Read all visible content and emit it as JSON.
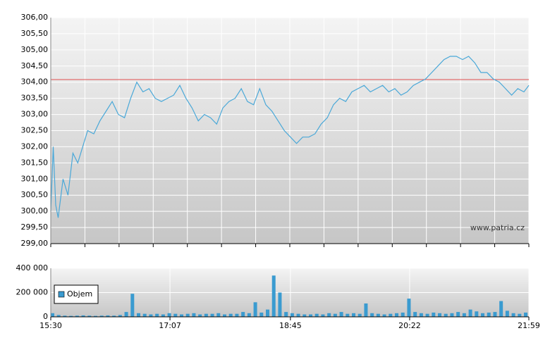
{
  "chart_data": [
    {
      "type": "line",
      "color": "#4aa8d8",
      "x": [
        "15:30",
        "15:32",
        "15:34",
        "15:36",
        "15:40",
        "15:44",
        "15:48",
        "15:52",
        "15:56",
        "16:00",
        "16:05",
        "16:10",
        "16:15",
        "16:20",
        "16:25",
        "16:30",
        "16:35",
        "16:40",
        "16:45",
        "16:50",
        "16:55",
        "17:00",
        "17:05",
        "17:10",
        "17:15",
        "17:20",
        "17:25",
        "17:30",
        "17:35",
        "17:40",
        "17:45",
        "17:50",
        "17:55",
        "18:00",
        "18:05",
        "18:10",
        "18:15",
        "18:20",
        "18:25",
        "18:30",
        "18:35",
        "18:40",
        "18:45",
        "18:50",
        "18:55",
        "19:00",
        "19:05",
        "19:10",
        "19:15",
        "19:20",
        "19:25",
        "19:30",
        "19:35",
        "19:40",
        "19:45",
        "19:50",
        "19:55",
        "20:00",
        "20:05",
        "20:10",
        "20:15",
        "20:20",
        "20:25",
        "20:30",
        "20:35",
        "20:40",
        "20:45",
        "20:50",
        "20:55",
        "21:00",
        "21:05",
        "21:10",
        "21:15",
        "21:20",
        "21:25",
        "21:30",
        "21:35",
        "21:40",
        "21:45",
        "21:50",
        "21:55",
        "21:59"
      ],
      "values": [
        300.0,
        302.0,
        300.2,
        299.8,
        301.0,
        300.5,
        301.8,
        301.5,
        302.0,
        302.5,
        302.4,
        302.8,
        303.1,
        303.4,
        303.0,
        302.9,
        303.5,
        304.0,
        303.7,
        303.8,
        303.5,
        303.4,
        303.5,
        303.6,
        303.9,
        303.5,
        303.2,
        302.8,
        303.0,
        302.9,
        302.7,
        303.2,
        303.4,
        303.5,
        303.8,
        303.4,
        303.3,
        303.8,
        303.3,
        303.1,
        302.8,
        302.5,
        302.3,
        302.1,
        302.3,
        302.3,
        302.4,
        302.7,
        302.9,
        303.3,
        303.5,
        303.4,
        303.7,
        303.8,
        303.9,
        303.7,
        303.8,
        303.9,
        303.7,
        303.8,
        303.6,
        303.7,
        303.9,
        304.0,
        304.1,
        304.3,
        304.5,
        304.7,
        304.8,
        304.8,
        304.7,
        304.8,
        304.6,
        304.3,
        304.3,
        304.1,
        304.0,
        303.8,
        303.6,
        303.8,
        303.7,
        303.9
      ],
      "reference_line": 304.08,
      "reference_color": "#e05050",
      "xlim": [
        "15:30",
        "21:59"
      ],
      "ylim": [
        299,
        306
      ],
      "yticks": [
        {
          "value": 299,
          "label": "299,00"
        },
        {
          "value": 299.5,
          "label": "299,50"
        },
        {
          "value": 300,
          "label": "300,00"
        },
        {
          "value": 300.5,
          "label": "300,50"
        },
        {
          "value": 301,
          "label": "301,00"
        },
        {
          "value": 301.5,
          "label": "301,50"
        },
        {
          "value": 302,
          "label": "302,00"
        },
        {
          "value": 302.5,
          "label": "302,50"
        },
        {
          "value": 303,
          "label": "303,00"
        },
        {
          "value": 303.5,
          "label": "303,50"
        },
        {
          "value": 304,
          "label": "304,00"
        },
        {
          "value": 304.5,
          "label": "304,50"
        },
        {
          "value": 305,
          "label": "305,00"
        },
        {
          "value": 305.5,
          "label": "305,50"
        },
        {
          "value": 306,
          "label": "306,00"
        }
      ],
      "grid": true,
      "annotation": "www.patria.cz"
    },
    {
      "type": "bar",
      "x": [
        "15:30",
        "15:35",
        "15:40",
        "15:45",
        "15:50",
        "15:55",
        "16:00",
        "16:05",
        "16:10",
        "16:15",
        "16:20",
        "16:25",
        "16:30",
        "16:35",
        "16:40",
        "16:45",
        "16:50",
        "16:55",
        "17:00",
        "17:05",
        "17:10",
        "17:15",
        "17:20",
        "17:25",
        "17:30",
        "17:35",
        "17:40",
        "17:45",
        "17:50",
        "17:55",
        "18:00",
        "18:05",
        "18:10",
        "18:15",
        "18:20",
        "18:25",
        "18:30",
        "18:35",
        "18:40",
        "18:45",
        "18:50",
        "18:55",
        "19:00",
        "19:05",
        "19:10",
        "19:15",
        "19:20",
        "19:25",
        "19:30",
        "19:35",
        "19:40",
        "19:45",
        "19:50",
        "19:55",
        "20:00",
        "20:05",
        "20:10",
        "20:15",
        "20:20",
        "20:25",
        "20:30",
        "20:35",
        "20:40",
        "20:45",
        "20:50",
        "20:55",
        "21:00",
        "21:05",
        "21:10",
        "21:15",
        "21:20",
        "21:25",
        "21:30",
        "21:35",
        "21:40",
        "21:45",
        "21:50",
        "21:55"
      ],
      "series": [
        {
          "name": "Objem",
          "color": "#3a9bd0",
          "values": [
            30000,
            15000,
            10000,
            8000,
            10000,
            12000,
            10000,
            8000,
            10000,
            12000,
            10000,
            15000,
            40000,
            190000,
            30000,
            25000,
            20000,
            25000,
            20000,
            30000,
            25000,
            20000,
            25000,
            30000,
            20000,
            25000,
            25000,
            30000,
            20000,
            25000,
            25000,
            40000,
            30000,
            120000,
            35000,
            60000,
            340000,
            200000,
            40000,
            30000,
            25000,
            20000,
            20000,
            25000,
            20000,
            30000,
            25000,
            40000,
            25000,
            30000,
            25000,
            110000,
            30000,
            25000,
            20000,
            25000,
            30000,
            35000,
            150000,
            40000,
            30000,
            25000,
            35000,
            30000,
            25000,
            30000,
            40000,
            30000,
            60000,
            45000,
            30000,
            35000,
            40000,
            130000,
            50000,
            30000,
            25000,
            35000
          ]
        }
      ],
      "xlim": [
        "15:30",
        "21:59"
      ],
      "xticks": [
        "15:30",
        "17:07",
        "18:45",
        "20:22",
        "21:59"
      ],
      "ylim": [
        0,
        400000
      ],
      "yticks": [
        0,
        {
          "value": 200000,
          "label": "200 000"
        },
        {
          "value": 400000,
          "label": "400 000"
        }
      ],
      "grid": true
    }
  ]
}
